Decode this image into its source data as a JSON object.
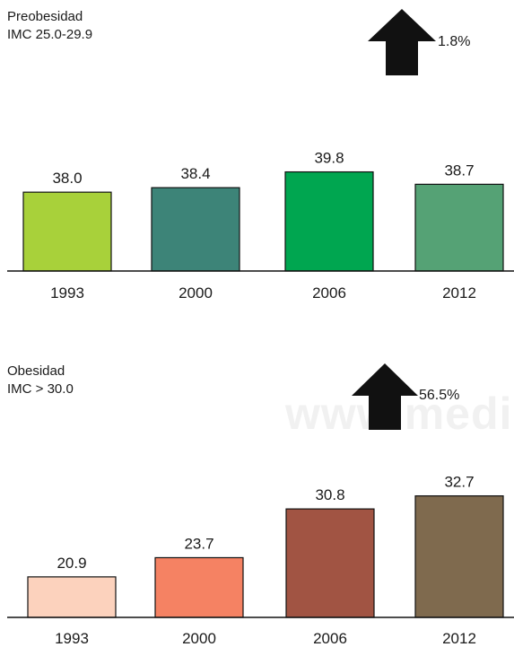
{
  "watermark": "www.medi",
  "chart_data": [
    {
      "type": "bar",
      "title": "Preobesidad",
      "subtitle": "IMC 25.0-29.9",
      "change": "1.8%",
      "categories": [
        "1993",
        "2000",
        "2006",
        "2012"
      ],
      "values": [
        38.0,
        38.4,
        39.8,
        38.7
      ],
      "value_labels": [
        "38.0",
        "38.4",
        "39.8",
        "38.7"
      ],
      "colors": [
        "#a8d13a",
        "#3d8478",
        "#00a650",
        "#55a275"
      ],
      "axis_baseline": 31.0
    },
    {
      "type": "bar",
      "title": "Obesidad",
      "subtitle": "IMC > 30.0",
      "change": "56.5%",
      "categories": [
        "1993",
        "2000",
        "2006",
        "2012"
      ],
      "values": [
        20.9,
        23.7,
        30.8,
        32.7
      ],
      "value_labels": [
        "20.9",
        "23.7",
        "30.8",
        "32.7"
      ],
      "colors": [
        "#fcd2bd",
        "#f58263",
        "#a15443",
        "#7f6a4e"
      ],
      "axis_baseline": 15.0
    }
  ]
}
